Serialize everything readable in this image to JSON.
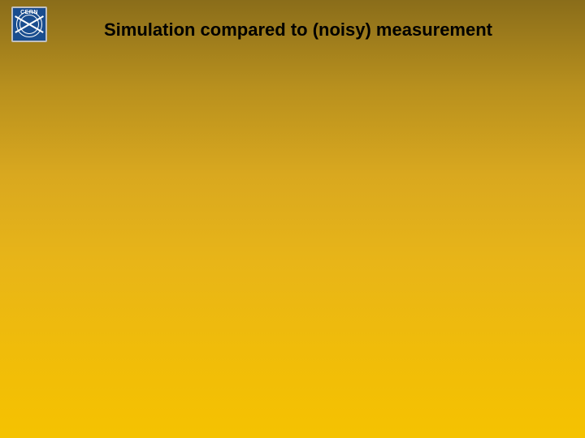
{
  "slide": {
    "title": "Simulation compared to (noisy) measurement",
    "logo": {
      "label": "CERN",
      "background_color": "#1a4d8f",
      "border_color": "#c0c0c0",
      "accent_color": "#ffffff"
    },
    "background": {
      "gradient_top": "#8a6d1a",
      "gradient_bottom": "#f5c200"
    },
    "title_style": {
      "font_family": "Arial",
      "font_size_pt": 22,
      "font_weight": "bold",
      "color": "#000000"
    }
  }
}
